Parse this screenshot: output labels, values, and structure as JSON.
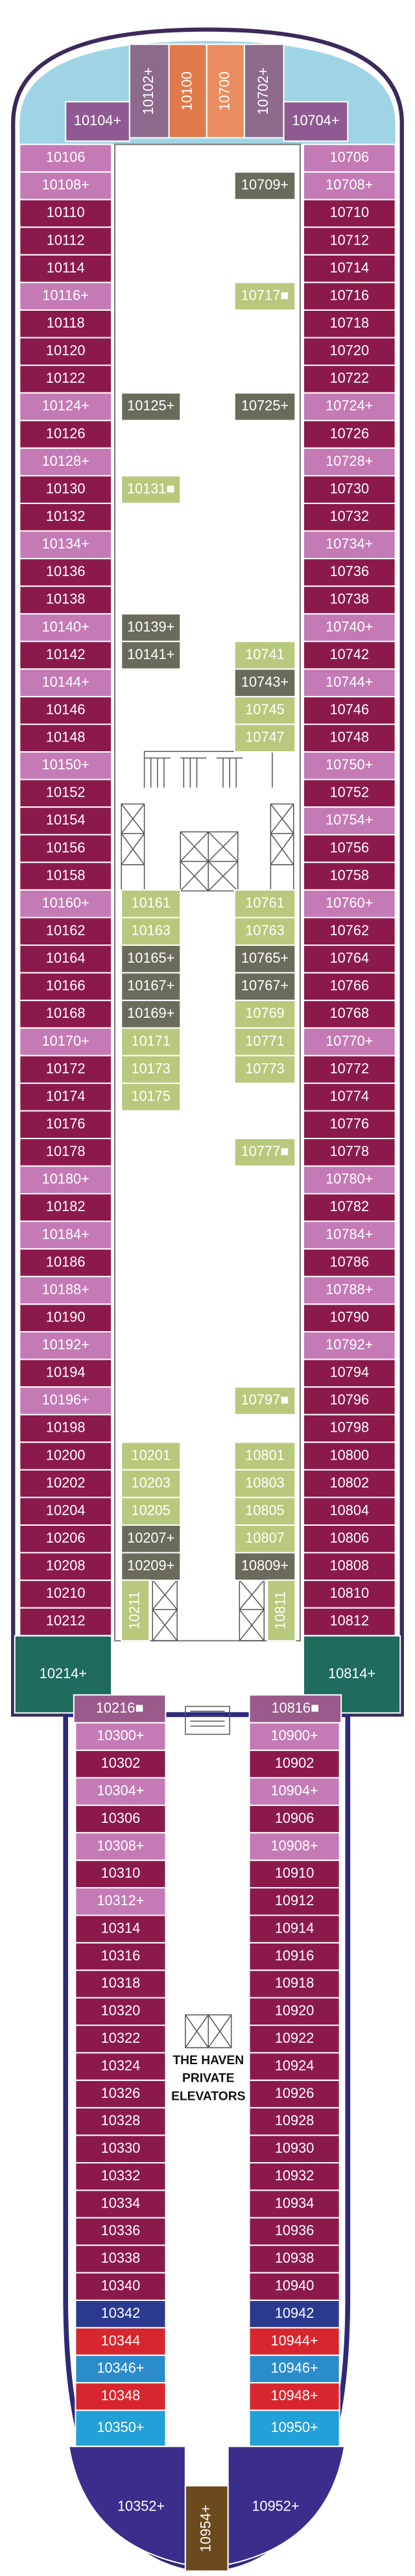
{
  "bow": [
    {
      "label": "10104+",
      "color": "#8f5a92"
    },
    {
      "label": "10102+",
      "color": "#8d6a8c"
    },
    {
      "label": "10100",
      "color": "#e07a4a"
    },
    {
      "label": "10700",
      "color": "#e98d60"
    },
    {
      "label": "10702+",
      "color": "#8d6a8c"
    },
    {
      "label": "10704+",
      "color": "#8f5a92"
    }
  ],
  "port": [
    {
      "label": "10106",
      "color": "#c47ab5"
    },
    {
      "label": "10108+",
      "color": "#c47ab5"
    },
    {
      "label": "10110",
      "color": "#8b1a4b"
    },
    {
      "label": "10112",
      "color": "#8b1a4b"
    },
    {
      "label": "10114",
      "color": "#8b1a4b"
    },
    {
      "label": "10116+",
      "color": "#c47ab5"
    },
    {
      "label": "10118",
      "color": "#8b1a4b"
    },
    {
      "label": "10120",
      "color": "#8b1a4b"
    },
    {
      "label": "10122",
      "color": "#8b1a4b"
    },
    {
      "label": "10124+",
      "color": "#c47ab5"
    },
    {
      "label": "10126",
      "color": "#8b1a4b"
    },
    {
      "label": "10128+",
      "color": "#c47ab5"
    },
    {
      "label": "10130",
      "color": "#8b1a4b"
    },
    {
      "label": "10132",
      "color": "#8b1a4b"
    },
    {
      "label": "10134+",
      "color": "#c47ab5"
    },
    {
      "label": "10136",
      "color": "#8b1a4b"
    },
    {
      "label": "10138",
      "color": "#8b1a4b"
    },
    {
      "label": "10140+",
      "color": "#c47ab5"
    },
    {
      "label": "10142",
      "color": "#8b1a4b"
    },
    {
      "label": "10144+",
      "color": "#c47ab5"
    },
    {
      "label": "10146",
      "color": "#8b1a4b"
    },
    {
      "label": "10148",
      "color": "#8b1a4b"
    },
    {
      "label": "10150+",
      "color": "#c47ab5"
    },
    {
      "label": "10152",
      "color": "#8b1a4b"
    },
    {
      "label": "10154",
      "color": "#8b1a4b"
    },
    {
      "label": "10156",
      "color": "#8b1a4b"
    },
    {
      "label": "10158",
      "color": "#8b1a4b"
    },
    {
      "label": "10160+",
      "color": "#c47ab5"
    },
    {
      "label": "10162",
      "color": "#8b1a4b"
    },
    {
      "label": "10164",
      "color": "#8b1a4b"
    },
    {
      "label": "10166",
      "color": "#8b1a4b"
    },
    {
      "label": "10168",
      "color": "#8b1a4b"
    },
    {
      "label": "10170+",
      "color": "#c47ab5"
    },
    {
      "label": "10172",
      "color": "#8b1a4b"
    },
    {
      "label": "10174",
      "color": "#8b1a4b"
    },
    {
      "label": "10176",
      "color": "#8b1a4b"
    },
    {
      "label": "10178",
      "color": "#8b1a4b"
    },
    {
      "label": "10180+",
      "color": "#c47ab5"
    },
    {
      "label": "10182",
      "color": "#8b1a4b"
    },
    {
      "label": "10184+",
      "color": "#c47ab5"
    },
    {
      "label": "10186",
      "color": "#8b1a4b"
    },
    {
      "label": "10188+",
      "color": "#c47ab5"
    },
    {
      "label": "10190",
      "color": "#8b1a4b"
    },
    {
      "label": "10192+",
      "color": "#c47ab5"
    },
    {
      "label": "10194",
      "color": "#8b1a4b"
    },
    {
      "label": "10196+",
      "color": "#c47ab5"
    },
    {
      "label": "10198",
      "color": "#8b1a4b"
    },
    {
      "label": "10200",
      "color": "#8b1a4b"
    },
    {
      "label": "10202",
      "color": "#8b1a4b"
    },
    {
      "label": "10204",
      "color": "#8b1a4b"
    },
    {
      "label": "10206",
      "color": "#8b1a4b"
    },
    {
      "label": "10208",
      "color": "#8b1a4b"
    },
    {
      "label": "10210",
      "color": "#8b1a4b"
    },
    {
      "label": "10212",
      "color": "#8b1a4b"
    }
  ],
  "starboard": [
    {
      "label": "10706",
      "color": "#c47ab5"
    },
    {
      "label": "10708+",
      "color": "#c47ab5"
    },
    {
      "label": "10710",
      "color": "#8b1a4b"
    },
    {
      "label": "10712",
      "color": "#8b1a4b"
    },
    {
      "label": "10714",
      "color": "#8b1a4b"
    },
    {
      "label": "10716",
      "color": "#8b1a4b"
    },
    {
      "label": "10718",
      "color": "#8b1a4b"
    },
    {
      "label": "10720",
      "color": "#8b1a4b"
    },
    {
      "label": "10722",
      "color": "#8b1a4b"
    },
    {
      "label": "10724+",
      "color": "#c47ab5"
    },
    {
      "label": "10726",
      "color": "#8b1a4b"
    },
    {
      "label": "10728+",
      "color": "#c47ab5"
    },
    {
      "label": "10730",
      "color": "#8b1a4b"
    },
    {
      "label": "10732",
      "color": "#8b1a4b"
    },
    {
      "label": "10734+",
      "color": "#c47ab5"
    },
    {
      "label": "10736",
      "color": "#8b1a4b"
    },
    {
      "label": "10738",
      "color": "#8b1a4b"
    },
    {
      "label": "10740+",
      "color": "#c47ab5"
    },
    {
      "label": "10742",
      "color": "#8b1a4b"
    },
    {
      "label": "10744+",
      "color": "#c47ab5"
    },
    {
      "label": "10746",
      "color": "#8b1a4b"
    },
    {
      "label": "10748",
      "color": "#8b1a4b"
    },
    {
      "label": "10750+",
      "color": "#c47ab5"
    },
    {
      "label": "10752",
      "color": "#8b1a4b"
    },
    {
      "label": "10754+",
      "color": "#c47ab5"
    },
    {
      "label": "10756",
      "color": "#8b1a4b"
    },
    {
      "label": "10758",
      "color": "#8b1a4b"
    },
    {
      "label": "10760+",
      "color": "#c47ab5"
    },
    {
      "label": "10762",
      "color": "#8b1a4b"
    },
    {
      "label": "10764",
      "color": "#8b1a4b"
    },
    {
      "label": "10766",
      "color": "#8b1a4b"
    },
    {
      "label": "10768",
      "color": "#8b1a4b"
    },
    {
      "label": "10770+",
      "color": "#c47ab5"
    },
    {
      "label": "10772",
      "color": "#8b1a4b"
    },
    {
      "label": "10774",
      "color": "#8b1a4b"
    },
    {
      "label": "10776",
      "color": "#8b1a4b"
    },
    {
      "label": "10778",
      "color": "#8b1a4b"
    },
    {
      "label": "10780+",
      "color": "#c47ab5"
    },
    {
      "label": "10782",
      "color": "#8b1a4b"
    },
    {
      "label": "10784+",
      "color": "#c47ab5"
    },
    {
      "label": "10786",
      "color": "#8b1a4b"
    },
    {
      "label": "10788+",
      "color": "#c47ab5"
    },
    {
      "label": "10790",
      "color": "#8b1a4b"
    },
    {
      "label": "10792+",
      "color": "#c47ab5"
    },
    {
      "label": "10794",
      "color": "#8b1a4b"
    },
    {
      "label": "10796",
      "color": "#8b1a4b"
    },
    {
      "label": "10798",
      "color": "#8b1a4b"
    },
    {
      "label": "10800",
      "color": "#8b1a4b"
    },
    {
      "label": "10802",
      "color": "#8b1a4b"
    },
    {
      "label": "10804",
      "color": "#8b1a4b"
    },
    {
      "label": "10806",
      "color": "#8b1a4b"
    },
    {
      "label": "10808",
      "color": "#8b1a4b"
    },
    {
      "label": "10810",
      "color": "#8b1a4b"
    },
    {
      "label": "10812",
      "color": "#8b1a4b"
    }
  ],
  "inner_port": [
    null,
    null,
    null,
    null,
    null,
    null,
    null,
    null,
    null,
    {
      "label": "10125+",
      "color": "#6b6b5c"
    },
    null,
    null,
    {
      "label": "10131■",
      "color": "#b7c97c"
    },
    null,
    null,
    null,
    null,
    {
      "label": "10139+",
      "color": "#6b6b5c"
    },
    {
      "label": "10141+",
      "color": "#6b6b5c"
    },
    null,
    null,
    null,
    null,
    null,
    null,
    null,
    null,
    {
      "label": "10161",
      "color": "#b7c97c"
    },
    {
      "label": "10163",
      "color": "#b7c97c"
    },
    {
      "label": "10165+",
      "color": "#6b6b5c"
    },
    {
      "label": "10167+",
      "color": "#6b6b5c"
    },
    {
      "label": "10169+",
      "color": "#6b6b5c"
    },
    {
      "label": "10171",
      "color": "#b7c97c"
    },
    {
      "label": "10173",
      "color": "#b7c97c"
    },
    {
      "label": "10175",
      "color": "#b7c97c"
    },
    null,
    null,
    null,
    null,
    null,
    null,
    null,
    null,
    null,
    null,
    null,
    null,
    {
      "label": "10201",
      "color": "#b7c97c"
    },
    {
      "label": "10203",
      "color": "#b7c97c"
    },
    {
      "label": "10205",
      "color": "#b7c97c"
    },
    {
      "label": "10207+",
      "color": "#6b6b5c"
    },
    {
      "label": "10209+",
      "color": "#6b6b5c"
    },
    null,
    null
  ],
  "inner_starboard": [
    null,
    {
      "label": "10709+",
      "color": "#6b6b5c"
    },
    null,
    null,
    null,
    {
      "label": "10717■",
      "color": "#b7c97c"
    },
    null,
    null,
    null,
    {
      "label": "10725+",
      "color": "#6b6b5c"
    },
    null,
    null,
    null,
    null,
    null,
    null,
    null,
    null,
    {
      "label": "10741",
      "color": "#b7c97c"
    },
    {
      "label": "10743+",
      "color": "#6b6b5c"
    },
    {
      "label": "10745",
      "color": "#b7c97c"
    },
    {
      "label": "10747",
      "color": "#b7c97c"
    },
    null,
    null,
    null,
    null,
    null,
    {
      "label": "10761",
      "color": "#b7c97c"
    },
    {
      "label": "10763",
      "color": "#b7c97c"
    },
    {
      "label": "10765+",
      "color": "#6b6b5c"
    },
    {
      "label": "10767+",
      "color": "#6b6b5c"
    },
    {
      "label": "10769",
      "color": "#b7c97c"
    },
    {
      "label": "10771",
      "color": "#b7c97c"
    },
    {
      "label": "10773",
      "color": "#b7c97c"
    },
    null,
    null,
    {
      "label": "10777■",
      "color": "#b7c97c"
    },
    null,
    null,
    null,
    null,
    null,
    null,
    null,
    null,
    {
      "label": "10797■",
      "color": "#b7c97c"
    },
    null,
    {
      "label": "10801",
      "color": "#b7c97c"
    },
    {
      "label": "10803",
      "color": "#b7c97c"
    },
    {
      "label": "10805",
      "color": "#b7c97c"
    },
    {
      "label": "10807",
      "color": "#b7c97c"
    },
    {
      "label": "10809+",
      "color": "#6b6b5c"
    },
    null,
    null
  ],
  "midship": [
    {
      "label": "10211",
      "color": "#b7c97c"
    },
    {
      "label": "10811",
      "color": "#b7c97c"
    },
    {
      "label": "10214+",
      "color": "#1f6b5e"
    },
    {
      "label": "10814+",
      "color": "#1f6b5e"
    },
    {
      "label": "10216■",
      "color": "#9a5a8c"
    },
    {
      "label": "10816■",
      "color": "#9a5a8c"
    }
  ],
  "aft_port": [
    {
      "label": "10300+",
      "color": "#c47ab5"
    },
    {
      "label": "10302",
      "color": "#8b1a4b"
    },
    {
      "label": "10304+",
      "color": "#c47ab5"
    },
    {
      "label": "10306",
      "color": "#8b1a4b"
    },
    {
      "label": "10308+",
      "color": "#c47ab5"
    },
    {
      "label": "10310",
      "color": "#8b1a4b"
    },
    {
      "label": "10312+",
      "color": "#c47ab5"
    },
    {
      "label": "10314",
      "color": "#8b1a4b"
    },
    {
      "label": "10316",
      "color": "#8b1a4b"
    },
    {
      "label": "10318",
      "color": "#8b1a4b"
    },
    {
      "label": "10320",
      "color": "#8b1a4b"
    },
    {
      "label": "10322",
      "color": "#8b1a4b"
    },
    {
      "label": "10324",
      "color": "#8b1a4b"
    },
    {
      "label": "10326",
      "color": "#8b1a4b"
    },
    {
      "label": "10328",
      "color": "#8b1a4b"
    },
    {
      "label": "10330",
      "color": "#8b1a4b"
    },
    {
      "label": "10332",
      "color": "#8b1a4b"
    },
    {
      "label": "10334",
      "color": "#8b1a4b"
    },
    {
      "label": "10336",
      "color": "#8b1a4b"
    },
    {
      "label": "10338",
      "color": "#8b1a4b"
    },
    {
      "label": "10340",
      "color": "#8b1a4b"
    },
    {
      "label": "10342",
      "color": "#2b3a8f"
    },
    {
      "label": "10344",
      "color": "#d8262e"
    },
    {
      "label": "10346+",
      "color": "#2b8ccc"
    },
    {
      "label": "10348",
      "color": "#d8262e"
    },
    {
      "label": "10350+",
      "color": "#22a0d8"
    }
  ],
  "aft_starboard": [
    {
      "label": "10900+",
      "color": "#c47ab5"
    },
    {
      "label": "10902",
      "color": "#8b1a4b"
    },
    {
      "label": "10904+",
      "color": "#c47ab5"
    },
    {
      "label": "10906",
      "color": "#8b1a4b"
    },
    {
      "label": "10908+",
      "color": "#c47ab5"
    },
    {
      "label": "10910",
      "color": "#8b1a4b"
    },
    {
      "label": "10912",
      "color": "#8b1a4b"
    },
    {
      "label": "10914",
      "color": "#8b1a4b"
    },
    {
      "label": "10916",
      "color": "#8b1a4b"
    },
    {
      "label": "10918",
      "color": "#8b1a4b"
    },
    {
      "label": "10920",
      "color": "#8b1a4b"
    },
    {
      "label": "10922",
      "color": "#8b1a4b"
    },
    {
      "label": "10924",
      "color": "#8b1a4b"
    },
    {
      "label": "10926",
      "color": "#8b1a4b"
    },
    {
      "label": "10928",
      "color": "#8b1a4b"
    },
    {
      "label": "10930",
      "color": "#8b1a4b"
    },
    {
      "label": "10932",
      "color": "#8b1a4b"
    },
    {
      "label": "10934",
      "color": "#8b1a4b"
    },
    {
      "label": "10936",
      "color": "#8b1a4b"
    },
    {
      "label": "10938",
      "color": "#8b1a4b"
    },
    {
      "label": "10940",
      "color": "#8b1a4b"
    },
    {
      "label": "10942",
      "color": "#2b3a8f"
    },
    {
      "label": "10944+",
      "color": "#d8262e"
    },
    {
      "label": "10946+",
      "color": "#2b8ccc"
    },
    {
      "label": "10948+",
      "color": "#d8262e"
    },
    {
      "label": "10950+",
      "color": "#22a0d8"
    }
  ],
  "stern": [
    {
      "label": "10352+",
      "color": "#3a2d8c"
    },
    {
      "label": "10952+",
      "color": "#3a2d8c"
    },
    {
      "label": "10954+",
      "color": "#6b4a1e"
    }
  ],
  "haven_label": [
    "THE HAVEN",
    "PRIVATE",
    "ELEVATORS"
  ]
}
